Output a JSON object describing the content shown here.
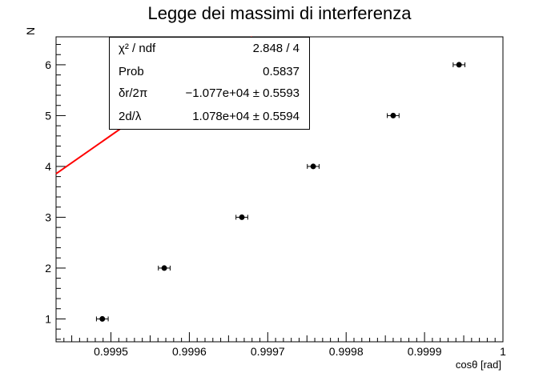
{
  "chart_data": {
    "type": "scatter",
    "title": "Legge dei massimi di interferenza",
    "xlabel": "cosθ [rad]",
    "ylabel": "N",
    "xlim": [
      0.99943,
      1.0
    ],
    "ylim": [
      0.55,
      6.55
    ],
    "x_ticks": [
      0.9995,
      0.9996,
      0.9997,
      0.9998,
      0.9999,
      1
    ],
    "x_tick_labels": [
      "0.9995",
      "0.9996",
      "0.9997",
      "0.9998",
      "0.9999",
      "1"
    ],
    "y_ticks": [
      1,
      2,
      3,
      4,
      5,
      6
    ],
    "y_tick_labels": [
      "1",
      "2",
      "3",
      "4",
      "5",
      "6"
    ],
    "grid": false,
    "series": [
      {
        "points": [
          {
            "x": 0.999489,
            "y": 1,
            "xerr": 7.5e-06
          },
          {
            "x": 0.999568,
            "y": 2,
            "xerr": 7.5e-06
          },
          {
            "x": 0.999667,
            "y": 3,
            "xerr": 7.5e-06
          },
          {
            "x": 0.999758,
            "y": 4,
            "xerr": 7.5e-06
          },
          {
            "x": 0.99986,
            "y": 5,
            "xerr": 7.5e-06
          },
          {
            "x": 0.999944,
            "y": 6,
            "xerr": 7.5e-06
          }
        ],
        "color": "#000000"
      }
    ],
    "fit": {
      "color": "#ff0000",
      "intercept": -10770.0,
      "slope": 10780.0
    },
    "stats_box": [
      {
        "key": "χ² / ndf",
        "value": "2.848 / 4"
      },
      {
        "key": "Prob",
        "value": "0.5837"
      },
      {
        "key": "δr/2π",
        "value": "−1.077e+04 ± 0.5593"
      },
      {
        "key": "2d/λ",
        "value": "1.078e+04 ± 0.5594"
      }
    ]
  }
}
